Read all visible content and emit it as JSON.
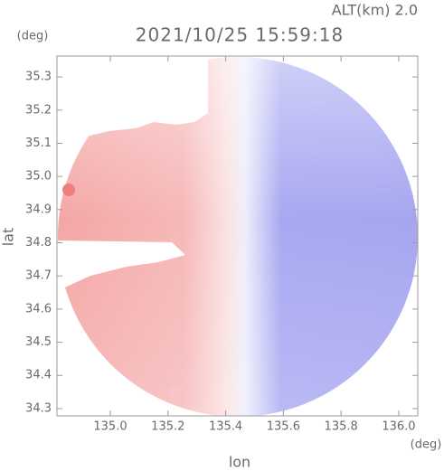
{
  "chart_data": {
    "type": "radar-field",
    "title": "2021/10/25 15:59:18",
    "subtitle": "ALT(km) 2.0",
    "x_label": "lon",
    "y_label": "lat",
    "x_unit": "(deg)",
    "y_unit": "(deg)",
    "xlim": [
      134.815,
      136.066
    ],
    "ylim": [
      34.278,
      35.363
    ],
    "xticks": [
      {
        "value": 135.0,
        "label": "135.0"
      },
      135.2,
      135.4,
      135.6,
      135.8,
      {
        "value": 136.0,
        "label": "136.0"
      }
    ],
    "yticks": [
      34.3,
      34.4,
      34.5,
      34.6,
      34.7,
      34.8,
      34.9,
      {
        "value": 35.0,
        "label": "35.0"
      },
      35.1,
      35.2,
      35.3
    ]
  }
}
